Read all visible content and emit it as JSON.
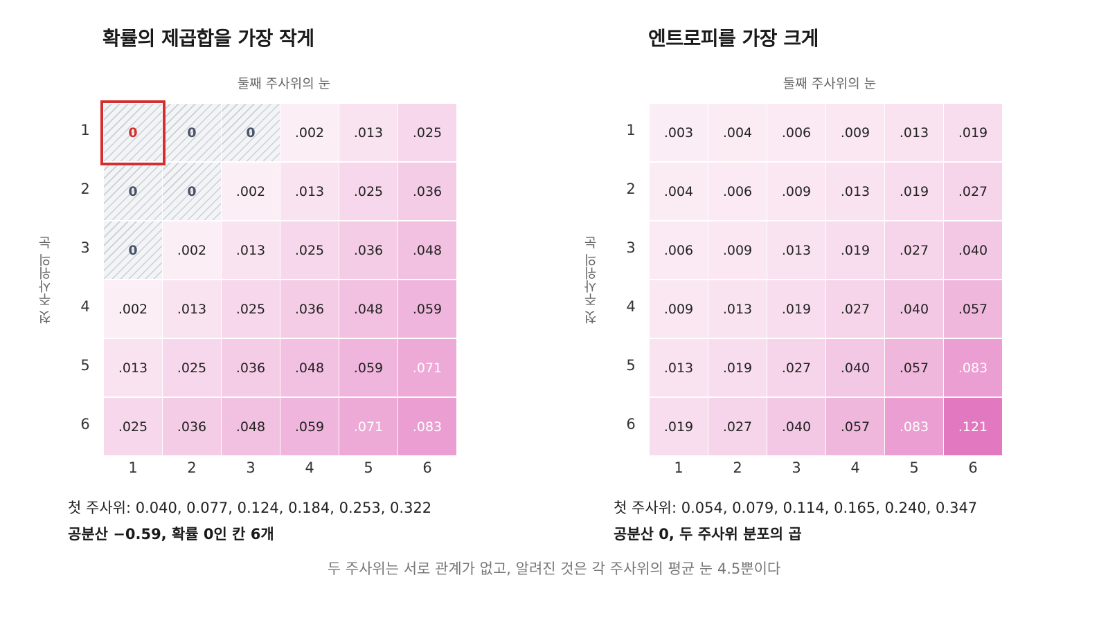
{
  "panels": [
    {
      "title": "확률의 제곱합을 가장 작게",
      "col_axis_label": "둘째 주사위의 눈",
      "row_axis_label": "첫 주사위의 눈",
      "row_ticks": [
        "1",
        "2",
        "3",
        "4",
        "5",
        "6"
      ],
      "col_ticks": [
        "1",
        "2",
        "3",
        "4",
        "5",
        "6"
      ],
      "cells": [
        [
          "0",
          "0",
          "0",
          ".002",
          ".013",
          ".025"
        ],
        [
          "0",
          "0",
          ".002",
          ".013",
          ".025",
          ".036"
        ],
        [
          "0",
          ".002",
          ".013",
          ".025",
          ".036",
          ".048"
        ],
        [
          ".002",
          ".013",
          ".025",
          ".036",
          ".048",
          ".059"
        ],
        [
          ".013",
          ".025",
          ".036",
          ".048",
          ".059",
          ".071"
        ],
        [
          ".025",
          ".036",
          ".048",
          ".059",
          ".071",
          ".083"
        ]
      ],
      "values": [
        [
          0,
          0,
          0,
          0.002,
          0.013,
          0.025
        ],
        [
          0,
          0,
          0.002,
          0.013,
          0.025,
          0.036
        ],
        [
          0,
          0.002,
          0.013,
          0.025,
          0.036,
          0.048
        ],
        [
          0.002,
          0.013,
          0.025,
          0.036,
          0.048,
          0.059
        ],
        [
          0.013,
          0.025,
          0.036,
          0.048,
          0.059,
          0.071
        ],
        [
          0.025,
          0.036,
          0.048,
          0.059,
          0.071,
          0.083
        ]
      ],
      "highlight": [
        0,
        0
      ],
      "marginal_text": "첫 주사위: 0.040, 0.077, 0.124, 0.184, 0.253, 0.322",
      "summary_text": "공분산 −0.59, 확률 0인 칸 6개"
    },
    {
      "title": "엔트로피를 가장 크게",
      "col_axis_label": "둘째 주사위의 눈",
      "row_axis_label": "첫 주사위의 눈",
      "row_ticks": [
        "1",
        "2",
        "3",
        "4",
        "5",
        "6"
      ],
      "col_ticks": [
        "1",
        "2",
        "3",
        "4",
        "5",
        "6"
      ],
      "cells": [
        [
          ".003",
          ".004",
          ".006",
          ".009",
          ".013",
          ".019"
        ],
        [
          ".004",
          ".006",
          ".009",
          ".013",
          ".019",
          ".027"
        ],
        [
          ".006",
          ".009",
          ".013",
          ".019",
          ".027",
          ".040"
        ],
        [
          ".009",
          ".013",
          ".019",
          ".027",
          ".040",
          ".057"
        ],
        [
          ".013",
          ".019",
          ".027",
          ".040",
          ".057",
          ".083"
        ],
        [
          ".019",
          ".027",
          ".040",
          ".057",
          ".083",
          ".121"
        ]
      ],
      "values": [
        [
          0.003,
          0.004,
          0.006,
          0.009,
          0.013,
          0.019
        ],
        [
          0.004,
          0.006,
          0.009,
          0.013,
          0.019,
          0.027
        ],
        [
          0.006,
          0.009,
          0.013,
          0.019,
          0.027,
          0.04
        ],
        [
          0.009,
          0.013,
          0.019,
          0.027,
          0.04,
          0.057
        ],
        [
          0.013,
          0.019,
          0.027,
          0.04,
          0.057,
          0.083
        ],
        [
          0.019,
          0.027,
          0.04,
          0.057,
          0.083,
          0.121
        ]
      ],
      "highlight": null,
      "marginal_text": "첫 주사위: 0.054, 0.079, 0.114, 0.165, 0.240, 0.347",
      "summary_text": "공분산 0, 두 주사위 분포의 곱"
    }
  ],
  "footer": "두 주사위는 서로 관계가 없고, 알려진 것은 각 주사위의 평균 눈 4.5뿐이다",
  "colors": {
    "heat_low": "#fcf0f6",
    "heat_high": "#e278c0",
    "zero_hatch": "#c9ced6",
    "highlight": "#d32f2f"
  },
  "color_scale_max": 0.121
}
